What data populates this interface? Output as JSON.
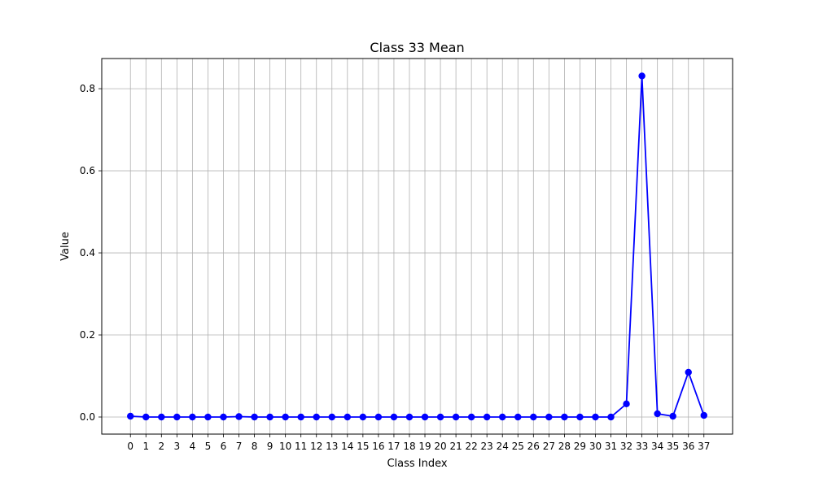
{
  "chart_data": {
    "type": "line",
    "title": "Class 33 Mean",
    "xlabel": "Class Index",
    "ylabel": "Value",
    "x": [
      0,
      1,
      2,
      3,
      4,
      5,
      6,
      7,
      8,
      9,
      10,
      11,
      12,
      13,
      14,
      15,
      16,
      17,
      18,
      19,
      20,
      21,
      22,
      23,
      24,
      25,
      26,
      27,
      28,
      29,
      30,
      31,
      32,
      33,
      34,
      35,
      36,
      37
    ],
    "series": [
      {
        "values": [
          0.002,
          0.0,
          0.0,
          0.0,
          0.0,
          0.0,
          0.0,
          0.001,
          0.0,
          0.0,
          0.0,
          0.0,
          0.0,
          0.0,
          0.0,
          0.0,
          0.0,
          0.0,
          0.0,
          0.0,
          0.0,
          0.0,
          0.0,
          0.0,
          0.0,
          0.0,
          0.0,
          0.0,
          0.0,
          0.0,
          0.0,
          0.0,
          0.032,
          0.831,
          0.008,
          0.002,
          0.109,
          0.004
        ],
        "color": "#0000ff",
        "marker": "circle"
      }
    ],
    "xticks": [
      0,
      1,
      2,
      3,
      4,
      5,
      6,
      7,
      8,
      9,
      10,
      11,
      12,
      13,
      14,
      15,
      16,
      17,
      18,
      19,
      20,
      21,
      22,
      23,
      24,
      25,
      26,
      27,
      28,
      29,
      30,
      31,
      32,
      33,
      34,
      35,
      36,
      37
    ],
    "yticks": [
      0.0,
      0.2,
      0.4,
      0.6,
      0.8
    ],
    "ytick_labels": [
      "0.0",
      "0.2",
      "0.4",
      "0.6",
      "0.8"
    ],
    "xlim": [
      -1.85,
      38.85
    ],
    "ylim": [
      -0.0416,
      0.8735
    ],
    "grid": true,
    "grid_color": "#b0b0b0"
  }
}
